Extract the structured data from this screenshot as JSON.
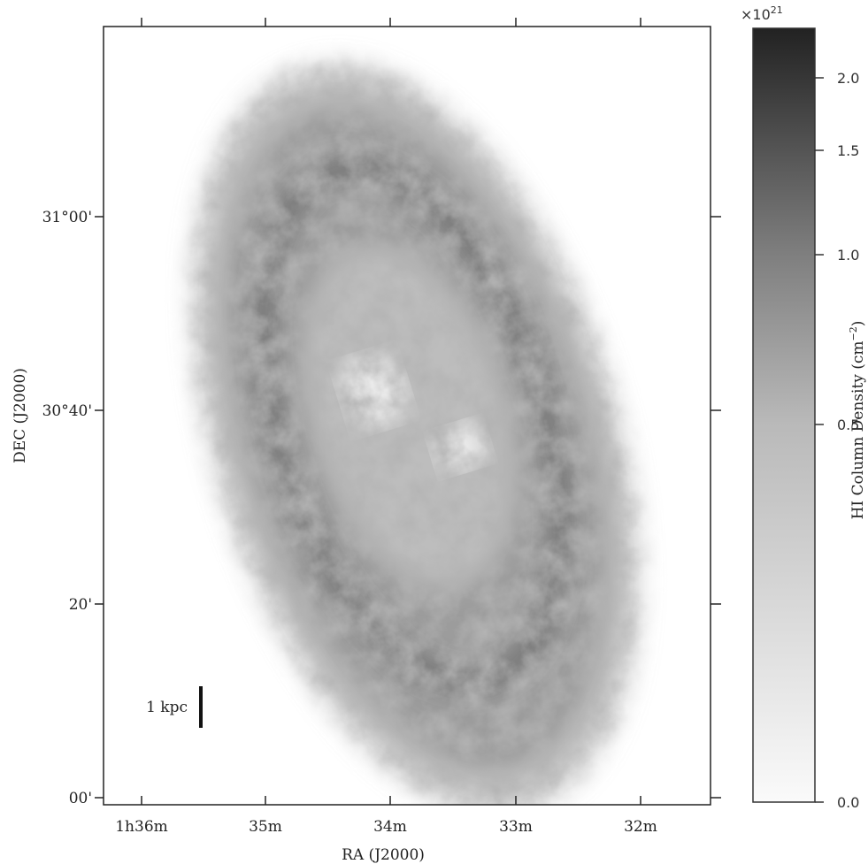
{
  "figure": {
    "x_axis": {
      "label": "RA (J2000)",
      "ticks": [
        "1h36m",
        "35m",
        "34m",
        "33m",
        "32m"
      ]
    },
    "y_axis": {
      "label": "DEC (J2000)",
      "ticks": [
        "31°00'",
        "30°40'",
        "20'",
        "00'"
      ]
    },
    "scale_bar": {
      "label": "1 kpc"
    },
    "colorbar": {
      "label": {
        "text": "HI Column Density (cm",
        "superscript": "−2",
        "suffix": ")"
      },
      "multiplier": {
        "base": "×10",
        "exponent": "21"
      },
      "ticks": [
        "0.0",
        "0.5",
        "1.0",
        "1.5",
        "2.0"
      ]
    }
  }
}
